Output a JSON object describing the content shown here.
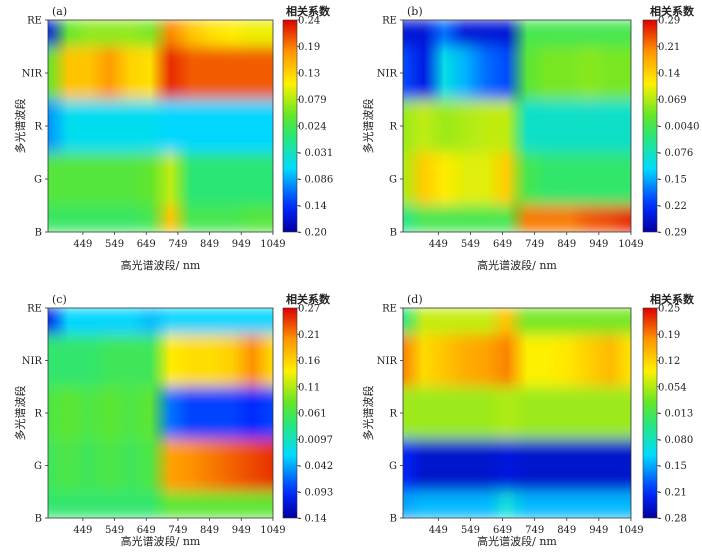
{
  "chart_data": [
    {
      "type": "heatmap",
      "panel_label": "(a)",
      "xlabel": "高光谱波段/ nm",
      "ylabel": "多光谱波段",
      "x_ticks": [
        "449",
        "549",
        "649",
        "749",
        "849",
        "949",
        "1049"
      ],
      "y_ticks": [
        "RE",
        "NIR",
        "R",
        "G",
        "B"
      ],
      "colorbar_title": "相关系数",
      "colorbar_ticks": [
        "0.24",
        "0.19",
        "0.13",
        "0.079",
        "0.024",
        "-0.031",
        "-0.086",
        "-0.14",
        "-0.20"
      ],
      "value_range": [
        -0.2,
        0.24
      ],
      "rows": [
        {
          "band": "RE",
          "values": [
            -0.16,
            0.04,
            0.06,
            0.06,
            0.06,
            0.05,
            0.18,
            0.14,
            0.12,
            0.11,
            0.1,
            0.1
          ]
        },
        {
          "band": "NIR",
          "values": [
            0.04,
            0.14,
            0.14,
            0.17,
            0.13,
            0.12,
            0.22,
            0.2,
            0.2,
            0.2,
            0.2,
            0.2
          ]
        },
        {
          "band": "R",
          "values": [
            -0.1,
            -0.06,
            -0.06,
            -0.06,
            -0.06,
            -0.06,
            -0.07,
            -0.07,
            -0.07,
            -0.07,
            -0.07,
            -0.07
          ]
        },
        {
          "band": "G",
          "values": [
            0.03,
            0.03,
            0.03,
            0.03,
            0.03,
            0.04,
            0.08,
            0.0,
            0.0,
            0.0,
            0.0,
            0.0
          ]
        },
        {
          "band": "B",
          "values": [
            0.01,
            0.01,
            0.01,
            0.01,
            0.01,
            0.02,
            0.14,
            0.02,
            0.02,
            0.02,
            0.03,
            0.03
          ]
        }
      ]
    },
    {
      "type": "heatmap",
      "panel_label": "(b)",
      "xlabel": "高光谱波段/ nm",
      "ylabel": "多光谱波段",
      "x_ticks": [
        "449",
        "549",
        "649",
        "749",
        "849",
        "949",
        "1049"
      ],
      "y_ticks": [
        "RE",
        "NIR",
        "R",
        "G",
        "B"
      ],
      "colorbar_title": "相关系数",
      "colorbar_ticks": [
        "0.29",
        "0.21",
        "0.14",
        "0.069",
        "-0.0040",
        "-0.076",
        "-0.15",
        "-0.22",
        "-0.29"
      ],
      "value_range": [
        -0.29,
        0.29
      ],
      "rows": [
        {
          "band": "RE",
          "values": [
            -0.25,
            -0.25,
            -0.18,
            -0.25,
            -0.25,
            -0.25,
            0.0,
            0.0,
            0.0,
            0.0,
            0.0,
            0.0
          ]
        },
        {
          "band": "NIR",
          "values": [
            -0.2,
            -0.24,
            -0.1,
            -0.14,
            -0.18,
            -0.2,
            0.02,
            0.04,
            0.04,
            0.05,
            0.04,
            0.04
          ]
        },
        {
          "band": "R",
          "values": [
            0.06,
            0.08,
            0.06,
            0.07,
            0.08,
            0.08,
            -0.08,
            -0.08,
            -0.08,
            -0.08,
            -0.08,
            -0.08
          ]
        },
        {
          "band": "G",
          "values": [
            0.07,
            0.15,
            0.12,
            0.1,
            0.1,
            0.15,
            0.0,
            -0.02,
            -0.02,
            -0.02,
            -0.02,
            -0.02
          ]
        },
        {
          "band": "B",
          "values": [
            -0.04,
            0.0,
            0.0,
            0.0,
            0.0,
            0.0,
            0.22,
            0.22,
            0.22,
            0.24,
            0.25,
            0.27
          ]
        }
      ]
    },
    {
      "type": "heatmap",
      "panel_label": "(c)",
      "xlabel": "高光谱波段/ nm",
      "ylabel": "多光谱波段",
      "x_ticks": [
        "449",
        "549",
        "649",
        "749",
        "849",
        "949",
        "1049"
      ],
      "y_ticks": [
        "RE",
        "NIR",
        "R",
        "G",
        "B"
      ],
      "colorbar_title": "相关系数",
      "colorbar_ticks": [
        "0.27",
        "0.21",
        "0.16",
        "0.11",
        "0.061",
        "0.0097",
        "-0.042",
        "-0.093",
        "-0.14"
      ],
      "value_range": [
        -0.14,
        0.27
      ],
      "rows": [
        {
          "band": "RE",
          "values": [
            -0.1,
            -0.02,
            -0.02,
            -0.02,
            -0.02,
            -0.03,
            -0.02,
            -0.02,
            -0.02,
            -0.02,
            -0.02,
            -0.02
          ]
        },
        {
          "band": "NIR",
          "values": [
            0.05,
            0.05,
            0.05,
            0.06,
            0.06,
            0.06,
            0.15,
            0.16,
            0.16,
            0.17,
            0.21,
            0.16
          ]
        },
        {
          "band": "R",
          "values": [
            0.07,
            0.08,
            0.07,
            0.08,
            0.07,
            0.08,
            -0.06,
            -0.08,
            -0.08,
            -0.08,
            -0.09,
            -0.08
          ]
        },
        {
          "band": "G",
          "values": [
            0.06,
            0.07,
            0.06,
            0.07,
            0.06,
            0.07,
            0.2,
            0.21,
            0.22,
            0.23,
            0.24,
            0.25
          ]
        },
        {
          "band": "B",
          "values": [
            0.05,
            0.05,
            0.05,
            0.05,
            0.05,
            0.05,
            0.08,
            0.08,
            0.08,
            0.08,
            0.08,
            0.08
          ]
        }
      ]
    },
    {
      "type": "heatmap",
      "panel_label": "(d)",
      "xlabel": "高光谱波段/ nm",
      "ylabel": "多光谱波段",
      "x_ticks": [
        "449",
        "549",
        "649",
        "749",
        "849",
        "949",
        "1049"
      ],
      "y_ticks": [
        "RE",
        "NIR",
        "R",
        "G",
        "B"
      ],
      "colorbar_title": "相关系数",
      "colorbar_ticks": [
        "0.25",
        "0.19",
        "0.12",
        "0.054",
        "-0.013",
        "-0.080",
        "-0.15",
        "-0.21",
        "-0.28"
      ],
      "value_range": [
        -0.28,
        0.25
      ],
      "rows": [
        {
          "band": "RE",
          "values": [
            -0.05,
            0.06,
            0.06,
            0.06,
            0.06,
            0.13,
            0.02,
            0.02,
            0.02,
            0.02,
            0.02,
            0.02
          ]
        },
        {
          "band": "NIR",
          "values": [
            0.18,
            0.11,
            0.13,
            0.15,
            0.16,
            0.18,
            0.09,
            0.09,
            0.1,
            0.12,
            0.14,
            0.1
          ]
        },
        {
          "band": "R",
          "values": [
            0.04,
            0.04,
            0.04,
            0.04,
            0.04,
            0.05,
            0.04,
            0.04,
            0.04,
            0.04,
            0.04,
            0.04
          ]
        },
        {
          "band": "G",
          "values": [
            -0.22,
            -0.25,
            -0.25,
            -0.25,
            -0.25,
            -0.24,
            -0.25,
            -0.25,
            -0.25,
            -0.25,
            -0.25,
            -0.25
          ]
        },
        {
          "band": "B",
          "values": [
            -0.15,
            -0.14,
            -0.14,
            -0.14,
            -0.14,
            -0.1,
            -0.14,
            -0.14,
            -0.14,
            -0.14,
            -0.14,
            -0.14
          ]
        }
      ]
    }
  ]
}
